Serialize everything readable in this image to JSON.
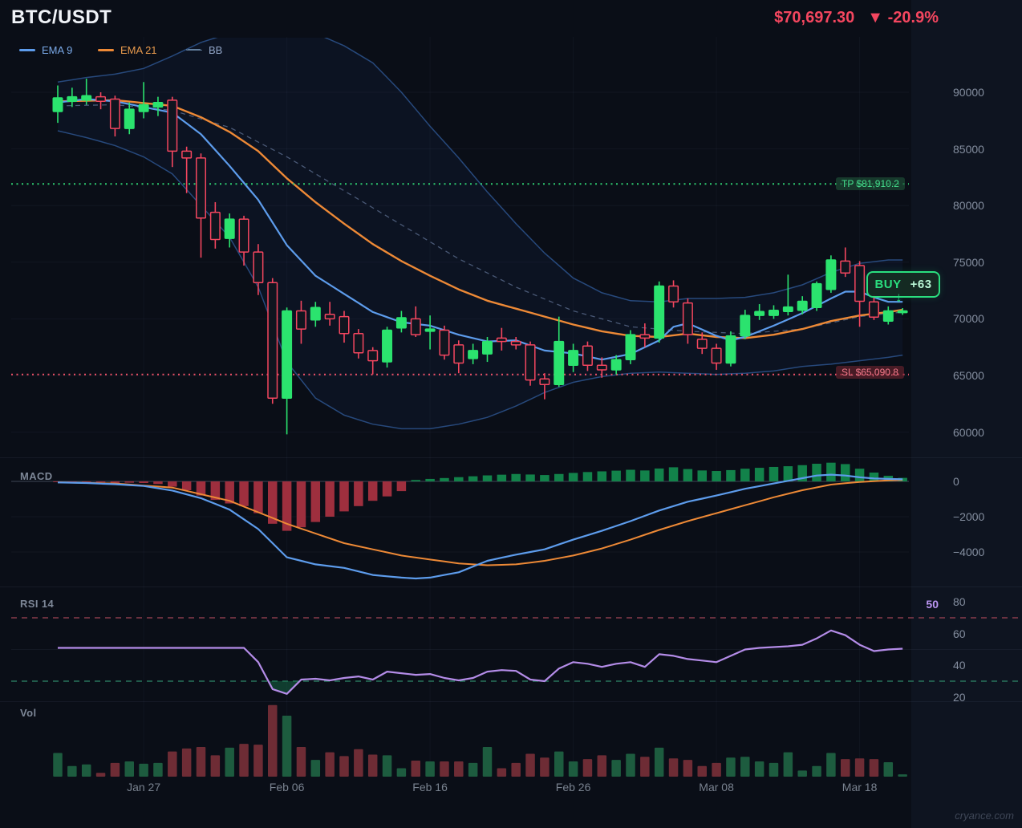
{
  "header": {
    "symbol": "BTC/USDT",
    "price": "$70,697.30",
    "change": "▼ -20.9%"
  },
  "legend": [
    {
      "label": "EMA 9",
      "color": "#5d9cec",
      "text_color": "#7aa9e8",
      "style": "solid"
    },
    {
      "label": "EMA 21",
      "color": "#ed8936",
      "text_color": "#e89a4d",
      "style": "solid"
    },
    {
      "label": "BB",
      "color": "#63809f",
      "text_color": "#93a7c9",
      "style": "dashed"
    }
  ],
  "panels": {
    "macd_label": "MACD",
    "rsi_label": "RSI 14",
    "vol_label": "Vol",
    "rsi_current": "50"
  },
  "overlays": {
    "tp_label": "TP $81,910.2",
    "sl_label": "SL $65,090.8",
    "buy_label": "BUY",
    "buy_value": "+63",
    "buy_arrow": "↓"
  },
  "watermark": "cryance.com",
  "colors": {
    "bg": "#0a0e17",
    "gutter": "#0e1420",
    "up": "#2be36e",
    "down": "#f4465f",
    "down_fill": "#10151f",
    "ema9": "#5d9cec",
    "ema21": "#ed8936",
    "bb_line": "#27497c",
    "bb_mid": "rgba(125,148,188,0.55)",
    "bb_fill": "rgba(37,72,140,0.10)",
    "tp": "#2ecc71",
    "sl": "#ee5168",
    "macd_up": "#12824a",
    "macd_down": "#9e2f3e",
    "macd_line": "#5d9cec",
    "macd_signal": "#ed8936",
    "rsi": "#b48ce8",
    "rsi_ob": "#a04455",
    "rsi_os": "#2e8868",
    "rsi_fill": "rgba(24,120,78,0.45)",
    "vol_up": "#1d5c3f",
    "vol_down": "#6e2c35",
    "grid": "rgba(140,160,200,0.06)",
    "zero": "#3e4656"
  },
  "chart_data": {
    "type": "candlestick",
    "symbol": "BTC/USDT",
    "interval": "1D",
    "tp_price": 81910.2,
    "sl_price": 65090.8,
    "price_ticks": [
      90000,
      85000,
      80000,
      75000,
      70000,
      65000,
      60000
    ],
    "x_ticks": [
      {
        "i": 6,
        "label": "Jan 27"
      },
      {
        "i": 16,
        "label": "Feb 06"
      },
      {
        "i": 26,
        "label": "Feb 16"
      },
      {
        "i": 36,
        "label": "Feb 26"
      },
      {
        "i": 46,
        "label": "Mar 08"
      },
      {
        "i": 56,
        "label": "Mar 18"
      }
    ],
    "columns": [
      "date",
      "open",
      "high",
      "low",
      "close"
    ],
    "candles": [
      [
        "Jan 21",
        88300,
        90600,
        87300,
        89500
      ],
      [
        "Jan 22",
        89200,
        90400,
        88700,
        89600
      ],
      [
        "Jan 23",
        89300,
        91200,
        88900,
        89700
      ],
      [
        "Jan 24",
        89600,
        90000,
        88500,
        89200
      ],
      [
        "Jan 25",
        89400,
        89700,
        86100,
        86800
      ],
      [
        "Jan 26",
        86800,
        89100,
        86300,
        88500
      ],
      [
        "Jan 27",
        88300,
        90900,
        87700,
        88900
      ],
      [
        "Jan 28",
        88700,
        89600,
        87900,
        89100
      ],
      [
        "Jan 29",
        89300,
        89600,
        83400,
        84800
      ],
      [
        "Jan 30",
        84800,
        85200,
        81100,
        84200
      ],
      [
        "Jan 31",
        84200,
        84600,
        75400,
        78900
      ],
      [
        "Feb 01",
        79400,
        80300,
        76200,
        77000
      ],
      [
        "Feb 02",
        77100,
        79300,
        76300,
        78800
      ],
      [
        "Feb 03",
        78800,
        79100,
        74700,
        75900
      ],
      [
        "Feb 04",
        75900,
        76600,
        72100,
        73200
      ],
      [
        "Feb 05",
        73200,
        73600,
        62500,
        63000
      ],
      [
        "Feb 06",
        63000,
        71000,
        59800,
        70700
      ],
      [
        "Feb 07",
        70700,
        71600,
        67800,
        69100
      ],
      [
        "Feb 08",
        69900,
        71500,
        69300,
        71000
      ],
      [
        "Feb 09",
        70400,
        71500,
        69400,
        70000
      ],
      [
        "Feb 10",
        70200,
        70700,
        67900,
        68700
      ],
      [
        "Feb 11",
        68700,
        69100,
        66500,
        67000
      ],
      [
        "Feb 12",
        67200,
        67500,
        65100,
        66300
      ],
      [
        "Feb 13",
        66200,
        69300,
        65700,
        69000
      ],
      [
        "Feb 14",
        69200,
        70700,
        68800,
        70100
      ],
      [
        "Feb 15",
        70000,
        71100,
        68400,
        68600
      ],
      [
        "Feb 16",
        68900,
        70300,
        67300,
        69100
      ],
      [
        "Feb 17",
        69000,
        69400,
        66400,
        66800
      ],
      [
        "Feb 18",
        67700,
        68100,
        65200,
        66100
      ],
      [
        "Feb 19",
        66500,
        67800,
        66000,
        67200
      ],
      [
        "Feb 20",
        66900,
        68400,
        66200,
        68000
      ],
      [
        "Feb 21",
        68300,
        69200,
        67200,
        68000
      ],
      [
        "Feb 22",
        68000,
        68400,
        67300,
        67700
      ],
      [
        "Feb 23",
        67700,
        68000,
        64100,
        64600
      ],
      [
        "Feb 24",
        64700,
        65200,
        62900,
        64200
      ],
      [
        "Feb 25",
        64200,
        70200,
        64000,
        68000
      ],
      [
        "Feb 26",
        65900,
        67800,
        65300,
        67200
      ],
      [
        "Feb 27",
        67600,
        68000,
        65400,
        65900
      ],
      [
        "Feb 28",
        65900,
        66600,
        64800,
        65500
      ],
      [
        "Mar 01",
        65500,
        66800,
        65100,
        66400
      ],
      [
        "Mar 02",
        66400,
        69000,
        66000,
        68600
      ],
      [
        "Mar 03",
        68600,
        69600,
        67500,
        68300
      ],
      [
        "Mar 04",
        68300,
        73300,
        67900,
        72900
      ],
      [
        "Mar 05",
        72900,
        73400,
        71000,
        71500
      ],
      [
        "Mar 06",
        71400,
        71800,
        67800,
        68600
      ],
      [
        "Mar 07",
        68200,
        68800,
        66900,
        67400
      ],
      [
        "Mar 08",
        67400,
        67800,
        65500,
        66100
      ],
      [
        "Mar 09",
        66100,
        68900,
        65800,
        68500
      ],
      [
        "Mar 10",
        68500,
        70800,
        68200,
        70300
      ],
      [
        "Mar 11",
        70300,
        71300,
        69900,
        70650
      ],
      [
        "Mar 12",
        70300,
        71200,
        70000,
        70750
      ],
      [
        "Mar 13",
        70650,
        73900,
        70300,
        71050
      ],
      [
        "Mar 14",
        70750,
        72000,
        70400,
        71550
      ],
      [
        "Mar 15",
        71000,
        73300,
        70700,
        73100
      ],
      [
        "Mar 16",
        72600,
        75600,
        72300,
        75200
      ],
      [
        "Mar 17",
        75100,
        76300,
        73700,
        74050
      ],
      [
        "Mar 18",
        74700,
        75100,
        69300,
        71550
      ],
      [
        "Mar 19",
        71500,
        72100,
        69900,
        70150
      ],
      [
        "Mar 20",
        69800,
        71100,
        69500,
        70700
      ],
      [
        "Mar 21",
        70550,
        70950,
        70350,
        70697
      ]
    ],
    "ema9_keyframes": [
      [
        0,
        89100
      ],
      [
        2,
        89400
      ],
      [
        4,
        89200
      ],
      [
        6,
        88700
      ],
      [
        8,
        88200
      ],
      [
        10,
        86300
      ],
      [
        12,
        83500
      ],
      [
        14,
        80500
      ],
      [
        16,
        76500
      ],
      [
        18,
        73800
      ],
      [
        20,
        72200
      ],
      [
        22,
        70600
      ],
      [
        24,
        69700
      ],
      [
        26,
        69400
      ],
      [
        28,
        68600
      ],
      [
        30,
        68000
      ],
      [
        32,
        68100
      ],
      [
        34,
        67200
      ],
      [
        36,
        66950
      ],
      [
        38,
        66400
      ],
      [
        40,
        66900
      ],
      [
        42,
        68100
      ],
      [
        43,
        69300
      ],
      [
        44,
        69600
      ],
      [
        46,
        68500
      ],
      [
        47,
        68100
      ],
      [
        48,
        68400
      ],
      [
        50,
        69400
      ],
      [
        52,
        70500
      ],
      [
        54,
        71800
      ],
      [
        55,
        72400
      ],
      [
        56,
        72400
      ],
      [
        57,
        71900
      ],
      [
        58,
        71500
      ],
      [
        59,
        71500
      ]
    ],
    "ema21_keyframes": [
      [
        0,
        89200
      ],
      [
        4,
        89300
      ],
      [
        8,
        88800
      ],
      [
        10,
        87800
      ],
      [
        12,
        86500
      ],
      [
        14,
        84800
      ],
      [
        16,
        82400
      ],
      [
        18,
        80300
      ],
      [
        20,
        78400
      ],
      [
        22,
        76600
      ],
      [
        24,
        75100
      ],
      [
        26,
        73800
      ],
      [
        28,
        72600
      ],
      [
        30,
        71600
      ],
      [
        32,
        70900
      ],
      [
        34,
        70200
      ],
      [
        36,
        69500
      ],
      [
        38,
        68900
      ],
      [
        40,
        68500
      ],
      [
        42,
        68400
      ],
      [
        44,
        68700
      ],
      [
        46,
        68400
      ],
      [
        48,
        68300
      ],
      [
        50,
        68600
      ],
      [
        52,
        69100
      ],
      [
        54,
        69800
      ],
      [
        56,
        70300
      ],
      [
        58,
        70600
      ],
      [
        59,
        70800
      ]
    ],
    "bb_upper_keyframes": [
      [
        0,
        90900
      ],
      [
        2,
        91300
      ],
      [
        4,
        91600
      ],
      [
        6,
        92100
      ],
      [
        8,
        93200
      ],
      [
        10,
        94400
      ],
      [
        12,
        95200
      ],
      [
        14,
        95600
      ],
      [
        16,
        95700
      ],
      [
        18,
        95200
      ],
      [
        20,
        94100
      ],
      [
        22,
        92600
      ],
      [
        24,
        90000
      ],
      [
        26,
        87000
      ],
      [
        28,
        84200
      ],
      [
        30,
        81200
      ],
      [
        32,
        78400
      ],
      [
        34,
        75800
      ],
      [
        36,
        73600
      ],
      [
        38,
        72300
      ],
      [
        40,
        71600
      ],
      [
        42,
        71500
      ],
      [
        44,
        71800
      ],
      [
        46,
        71800
      ],
      [
        48,
        71900
      ],
      [
        50,
        72300
      ],
      [
        52,
        73000
      ],
      [
        54,
        74100
      ],
      [
        56,
        74900
      ],
      [
        58,
        75200
      ],
      [
        59,
        75200
      ]
    ],
    "bb_middle_keyframes": [
      [
        0,
        88800
      ],
      [
        4,
        88900
      ],
      [
        8,
        88400
      ],
      [
        12,
        86900
      ],
      [
        16,
        84300
      ],
      [
        20,
        81300
      ],
      [
        24,
        78300
      ],
      [
        28,
        75300
      ],
      [
        32,
        72800
      ],
      [
        36,
        70700
      ],
      [
        40,
        69300
      ],
      [
        44,
        68900
      ],
      [
        48,
        68700
      ],
      [
        52,
        69100
      ],
      [
        56,
        70200
      ],
      [
        59,
        70600
      ]
    ],
    "bb_lower_keyframes": [
      [
        0,
        86600
      ],
      [
        2,
        86000
      ],
      [
        4,
        85300
      ],
      [
        6,
        84300
      ],
      [
        8,
        82800
      ],
      [
        10,
        80000
      ],
      [
        12,
        77200
      ],
      [
        14,
        72800
      ],
      [
        16,
        66200
      ],
      [
        18,
        63000
      ],
      [
        20,
        61500
      ],
      [
        22,
        60700
      ],
      [
        24,
        60300
      ],
      [
        26,
        60300
      ],
      [
        28,
        60700
      ],
      [
        30,
        61300
      ],
      [
        32,
        62300
      ],
      [
        34,
        63500
      ],
      [
        36,
        64400
      ],
      [
        38,
        64900
      ],
      [
        40,
        65200
      ],
      [
        42,
        65300
      ],
      [
        44,
        65200
      ],
      [
        46,
        65100
      ],
      [
        48,
        65200
      ],
      [
        50,
        65400
      ],
      [
        52,
        65800
      ],
      [
        54,
        66000
      ],
      [
        56,
        66300
      ],
      [
        58,
        66600
      ],
      [
        59,
        66800
      ]
    ],
    "macd": {
      "axis_ticks": [
        {
          "v": 0,
          "label": "0"
        },
        {
          "v": -2000,
          "label": "−2000"
        },
        {
          "v": -4000,
          "label": "−4000"
        }
      ],
      "histogram": [
        -15,
        -25,
        -40,
        -60,
        -90,
        -75,
        -90,
        -150,
        -300,
        -500,
        -800,
        -1050,
        -1250,
        -1400,
        -1800,
        -2400,
        -2800,
        -2600,
        -2300,
        -2000,
        -1700,
        -1400,
        -1100,
        -850,
        -550,
        80,
        140,
        190,
        240,
        290,
        340,
        380,
        420,
        390,
        360,
        420,
        480,
        530,
        570,
        610,
        660,
        620,
        730,
        800,
        700,
        620,
        590,
        640,
        720,
        770,
        820,
        860,
        920,
        1000,
        1060,
        980,
        720,
        500,
        320,
        200
      ],
      "macd_keyframes": [
        [
          0,
          -60
        ],
        [
          2,
          -90
        ],
        [
          4,
          -160
        ],
        [
          6,
          -260
        ],
        [
          8,
          -520
        ],
        [
          10,
          -950
        ],
        [
          12,
          -1600
        ],
        [
          14,
          -2700
        ],
        [
          16,
          -4300
        ],
        [
          18,
          -4700
        ],
        [
          20,
          -4900
        ],
        [
          22,
          -5300
        ],
        [
          24,
          -5450
        ],
        [
          25,
          -5500
        ],
        [
          26,
          -5450
        ],
        [
          28,
          -5150
        ],
        [
          30,
          -4500
        ],
        [
          32,
          -4150
        ],
        [
          34,
          -3850
        ],
        [
          36,
          -3300
        ],
        [
          38,
          -2800
        ],
        [
          40,
          -2250
        ],
        [
          42,
          -1650
        ],
        [
          44,
          -1150
        ],
        [
          46,
          -800
        ],
        [
          48,
          -420
        ],
        [
          50,
          -120
        ],
        [
          52,
          180
        ],
        [
          53,
          330
        ],
        [
          54,
          380
        ],
        [
          55,
          330
        ],
        [
          56,
          230
        ],
        [
          57,
          170
        ],
        [
          58,
          140
        ],
        [
          59,
          120
        ]
      ],
      "signal_keyframes": [
        [
          0,
          -50
        ],
        [
          4,
          -120
        ],
        [
          8,
          -350
        ],
        [
          12,
          -1100
        ],
        [
          16,
          -2400
        ],
        [
          20,
          -3500
        ],
        [
          24,
          -4200
        ],
        [
          28,
          -4650
        ],
        [
          30,
          -4750
        ],
        [
          32,
          -4700
        ],
        [
          34,
          -4500
        ],
        [
          36,
          -4200
        ],
        [
          38,
          -3800
        ],
        [
          40,
          -3300
        ],
        [
          42,
          -2750
        ],
        [
          44,
          -2250
        ],
        [
          46,
          -1800
        ],
        [
          48,
          -1350
        ],
        [
          50,
          -900
        ],
        [
          52,
          -500
        ],
        [
          54,
          -180
        ],
        [
          56,
          -30
        ],
        [
          58,
          60
        ],
        [
          59,
          80
        ]
      ]
    },
    "rsi": {
      "period_label": "RSI 14",
      "current": 50,
      "overbought": 70,
      "oversold": 30,
      "axis_ticks": [
        {
          "v": 80,
          "label": "80"
        },
        {
          "v": 60,
          "label": "60"
        },
        {
          "v": 40,
          "label": "40"
        },
        {
          "v": 20,
          "label": "20"
        }
      ],
      "values": [
        51,
        51,
        51,
        51,
        51,
        51,
        51,
        51,
        51,
        51,
        51,
        51,
        51,
        51,
        42,
        25,
        22,
        31,
        31.5,
        30.5,
        32,
        33,
        31,
        36,
        35,
        34,
        34.5,
        32,
        30.5,
        32,
        36,
        37,
        36.5,
        31,
        30,
        38,
        42,
        41,
        39,
        41,
        42,
        39,
        47,
        46,
        44,
        43,
        42,
        46,
        50,
        51,
        51.5,
        52,
        53,
        57,
        62,
        59,
        53,
        49,
        50,
        50.5
      ]
    },
    "volume": [
      31,
      14,
      16,
      5,
      18,
      20,
      17,
      18,
      33,
      37,
      39,
      28,
      38,
      43,
      42,
      94,
      80,
      39,
      22,
      32,
      27,
      36,
      29,
      28,
      11,
      21,
      20,
      20,
      20,
      18,
      39,
      11,
      18,
      30,
      25,
      33,
      20,
      23,
      28,
      22,
      30,
      26,
      38,
      24,
      22,
      14,
      18,
      25,
      26,
      20,
      18,
      32,
      8,
      14,
      31,
      23,
      24,
      23,
      19,
      3
    ]
  }
}
